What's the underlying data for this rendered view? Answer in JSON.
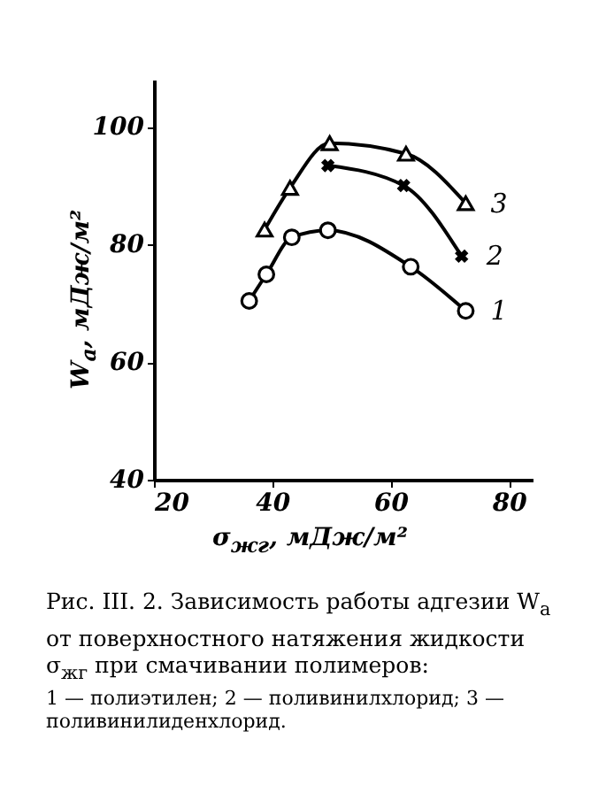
{
  "chart_data": {
    "type": "line",
    "title": "Рис. III. 2. Зависимость работы адгезии W$_{a}$ от поверхностного натяжения жидкости σ$_{жг}$ при смачивании полимеров:",
    "xlabel": "σ$_{жг}$, мДж/м²",
    "ylabel": "W$_{a}$, мДж/м²",
    "xlim": [
      20,
      84
    ],
    "ylim": [
      40,
      108
    ],
    "xticks": [
      20,
      40,
      60,
      80
    ],
    "yticks": [
      40,
      60,
      80,
      100
    ],
    "grid": false,
    "line_style": "solid",
    "series": [
      {
        "name": "1",
        "color": "#000000",
        "marker": "circle",
        "x": [
          36.1,
          39.0,
          43.3,
          49.4,
          63.4,
          72.7
        ],
        "values": [
          70.4,
          74.9,
          81.2,
          82.4,
          76.2,
          68.7
        ]
      },
      {
        "name": "2",
        "color": "#000000",
        "marker": "cross",
        "x": [
          49.4,
          62.2,
          72.0
        ],
        "values": [
          93.4,
          90.0,
          78.0
        ]
      },
      {
        "name": "3",
        "color": "#000000",
        "marker": "triangle",
        "x": [
          38.7,
          43.0,
          49.7,
          62.6,
          72.7
        ],
        "values": [
          82.5,
          89.6,
          97.2,
          95.4,
          87.0
        ]
      }
    ],
    "annotations": [
      "1 — полиэтилен;",
      "2 — поливинилхлорид;",
      "3 — поливинилиденхлорид."
    ]
  }
}
